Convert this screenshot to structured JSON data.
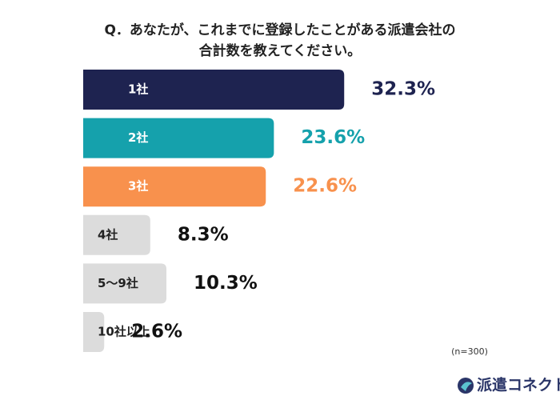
{
  "chart_data": {
    "type": "hbar",
    "title": "Q．あなたが、これまでに登録したことがある派遣会社の",
    "subtitle": "合計数を教えてください。",
    "categories": [
      "1社",
      "2社",
      "3社",
      "4社",
      "5〜9社",
      "10社以上"
    ],
    "values": [
      32.3,
      23.6,
      22.6,
      8.3,
      10.3,
      2.6
    ],
    "value_labels": [
      "32.3%",
      "23.6%",
      "22.6%",
      "8.3%",
      "10.3%",
      "2.6%"
    ],
    "colors": [
      "#1e2350",
      "#15a1ac",
      "#f8914d",
      "#dcdcdc",
      "#dcdcdc",
      "#dcdcdc"
    ],
    "label_colors": [
      "#1e2350",
      "#15a1ac",
      "#f8914d",
      "#111111",
      "#111111",
      "#111111"
    ],
    "category_label_colors": [
      "#ffffff",
      "#ffffff",
      "#ffffff",
      "#222222",
      "#222222",
      "#222222"
    ],
    "note": "(n=300)",
    "brand": "派遣コネクト"
  }
}
